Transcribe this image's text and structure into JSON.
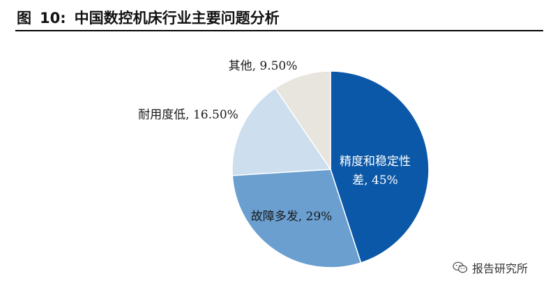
{
  "figure": {
    "label": "图",
    "number": "10:",
    "title": "中国数控机床行业主要问题分析"
  },
  "watermark": {
    "text": "报告研究所",
    "icon": "wechat-icon"
  },
  "chart_data": {
    "type": "pie",
    "slices": [
      {
        "label_lines": [
          "精度和稳定性",
          "差, 45%"
        ],
        "category": "精度和稳定性差",
        "value": 45,
        "color": "#0b58a8",
        "label_color": "#ffffff"
      },
      {
        "label_lines": [
          "故障多发, 29%"
        ],
        "category": "故障多发",
        "value": 29,
        "color": "#6a9fd0",
        "label_color": "#1a1a1a"
      },
      {
        "label_lines": [
          "耐用度低, 16.50%"
        ],
        "category": "耐用度低",
        "value": 16.5,
        "color": "#cddeee",
        "label_color": "#1a1a1a"
      },
      {
        "label_lines": [
          "其他, 9.50%"
        ],
        "category": "其他",
        "value": 9.5,
        "color": "#e8e5de",
        "label_color": "#1a1a1a"
      }
    ]
  }
}
